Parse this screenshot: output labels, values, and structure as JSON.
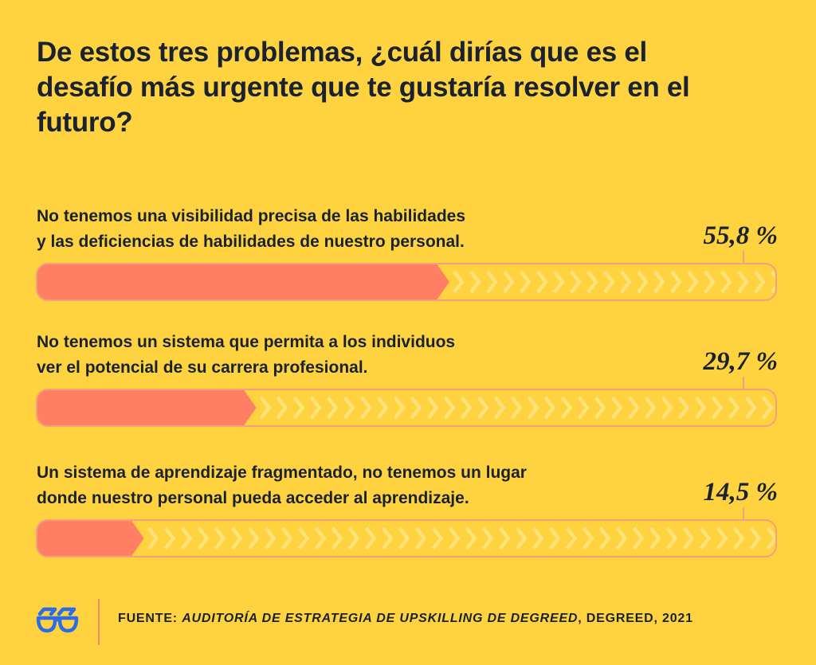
{
  "title": "De estos tres problemas, ¿cuál dirías que es el desafío más urgente que te gustaría resolver en el futuro?",
  "chart_data": {
    "type": "bar",
    "orientation": "horizontal",
    "categories": [
      [
        "No tenemos una visibilidad precisa de las habilidades",
        "y las deficiencias de habilidades de nuestro personal."
      ],
      [
        "No tenemos un sistema que permita a los individuos",
        "ver el potencial de su carrera profesional."
      ],
      [
        "Un sistema de aprendizaje fragmentado, no tenemos un lugar",
        "donde nuestro personal pueda acceder al aprendizaje."
      ]
    ],
    "values": [
      55.8,
      29.7,
      14.5
    ],
    "value_labels": [
      "55,8 %",
      "29,7 %",
      "14,5 %"
    ],
    "xlim": [
      0,
      100
    ],
    "bar_color": "#FF7F64",
    "track_color": "#FFD23F",
    "chevron_color": "#FFE27A",
    "outline_color": "#F4A07E"
  },
  "footer": {
    "source_prefix": "FUENTE: ",
    "source_title": "AUDITORÍA DE ESTRATEGIA DE UPSKILLING DE DEGREED",
    "source_suffix": ", DEGREED, 2021",
    "logo_icon": "degreed-glasses-icon",
    "logo_color": "#2B6CE8"
  }
}
